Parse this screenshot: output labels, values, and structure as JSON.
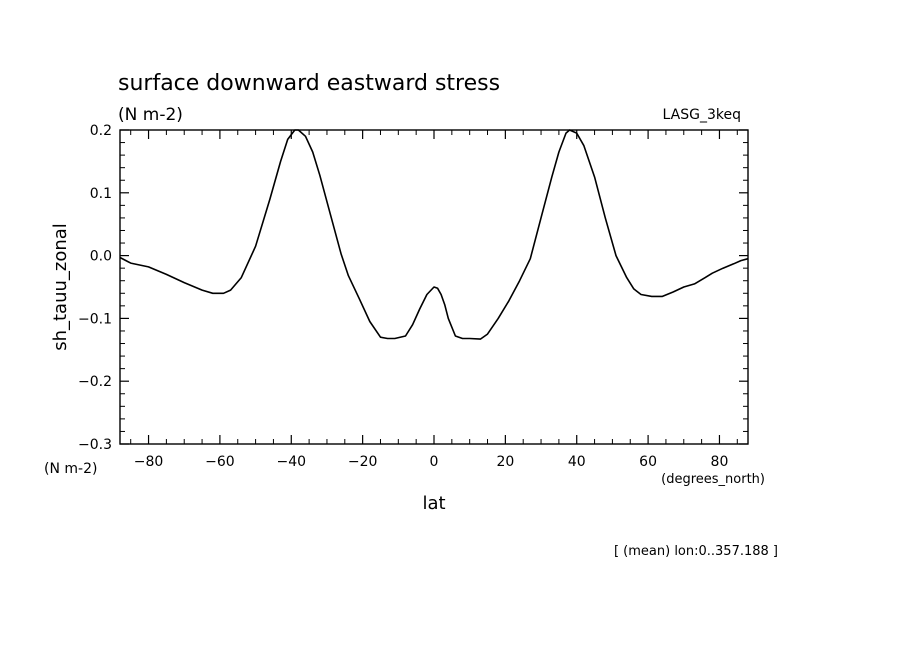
{
  "chart_data": {
    "type": "line",
    "title": "surface downward eastward stress",
    "units": "(N m-2)",
    "dataset_label": "LASG_3keq",
    "ylabel": "sh_tauu_zonal",
    "y_units_label": "(N m-2)",
    "xlabel": "lat",
    "x_units_label": "(degrees_north)",
    "footnote": "[ (mean) lon:0..357.188 ]",
    "xlim": [
      -88,
      88
    ],
    "ylim": [
      -0.3,
      0.2
    ],
    "x_ticks": [
      -80,
      -60,
      -40,
      -20,
      0,
      20,
      40,
      60,
      80
    ],
    "x_tick_labels": [
      "−80",
      "−60",
      "−40",
      "−20",
      "0",
      "20",
      "40",
      "60",
      "80"
    ],
    "y_ticks": [
      -0.3,
      -0.2,
      -0.1,
      0.0,
      0.1,
      0.2
    ],
    "y_tick_labels": [
      "−0.3",
      "−0.2",
      "−0.1",
      "0.0",
      "0.1",
      "0.2"
    ],
    "grid": false,
    "legend": "none",
    "line_color": "#000000",
    "series": [
      {
        "x": [
          -88,
          -85,
          -80,
          -75,
          -70,
          -65,
          -62,
          -59,
          -57,
          -54,
          -50,
          -46,
          -43,
          -41,
          -39,
          -38,
          -36,
          -34,
          -32,
          -29,
          -26,
          -24,
          -21,
          -18,
          -15,
          -13,
          -11,
          -8,
          -6,
          -4,
          -2,
          0,
          1,
          2,
          3,
          4,
          6,
          8,
          10,
          13,
          15,
          18,
          21,
          24,
          27,
          30,
          33,
          35,
          37,
          38,
          40,
          42,
          45,
          48,
          51,
          54,
          56,
          58,
          61,
          64,
          67,
          70,
          73,
          76,
          78,
          81,
          84,
          86,
          88
        ],
        "y": [
          -0.003,
          -0.012,
          -0.018,
          -0.03,
          -0.043,
          -0.055,
          -0.06,
          -0.06,
          -0.055,
          -0.035,
          0.015,
          0.09,
          0.15,
          0.185,
          0.2,
          0.2,
          0.19,
          0.165,
          0.128,
          0.065,
          0.002,
          -0.032,
          -0.068,
          -0.105,
          -0.13,
          -0.132,
          -0.132,
          -0.128,
          -0.11,
          -0.085,
          -0.062,
          -0.05,
          -0.052,
          -0.062,
          -0.078,
          -0.1,
          -0.128,
          -0.132,
          -0.132,
          -0.133,
          -0.125,
          -0.1,
          -0.072,
          -0.04,
          -0.005,
          0.06,
          0.125,
          0.165,
          0.195,
          0.2,
          0.195,
          0.175,
          0.125,
          0.06,
          0.0,
          -0.035,
          -0.053,
          -0.062,
          -0.065,
          -0.065,
          -0.058,
          -0.05,
          -0.045,
          -0.035,
          -0.028,
          -0.02,
          -0.013,
          -0.008,
          -0.005
        ]
      }
    ]
  }
}
